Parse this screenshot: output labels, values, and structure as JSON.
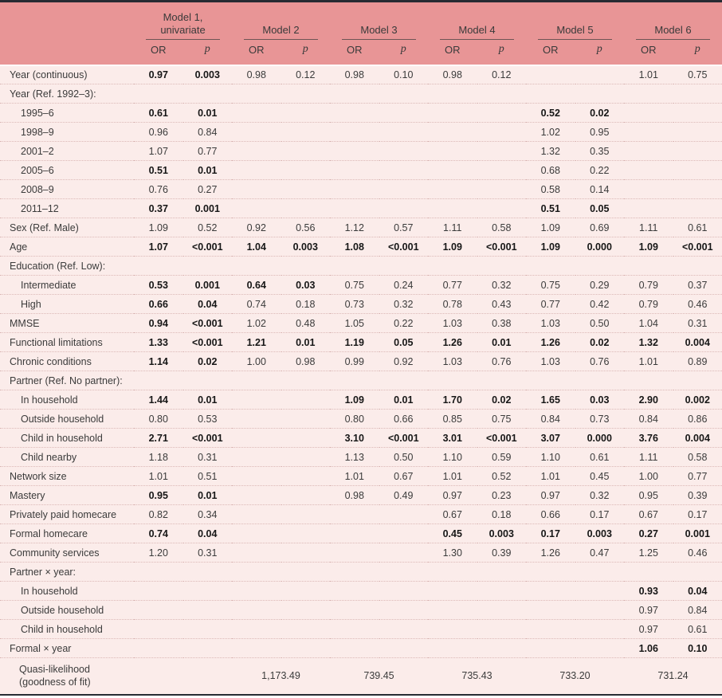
{
  "colors": {
    "header_bg": "#e89596",
    "body_bg": "#fbecea",
    "separator": "#dcb9b7",
    "frame": "#272b33",
    "text": "#3b3b3b",
    "bold_text": "#161616",
    "model_rule": "#6e5555"
  },
  "header": {
    "models": [
      {
        "line1": "Model 1,",
        "line2": "univariate"
      },
      {
        "line1": "Model 2",
        "line2": ""
      },
      {
        "line1": "Model 3",
        "line2": ""
      },
      {
        "line1": "Model 4",
        "line2": ""
      },
      {
        "line1": "Model 5",
        "line2": ""
      },
      {
        "line1": "Model 6",
        "line2": ""
      }
    ],
    "col_or": "OR",
    "col_p": "p"
  },
  "rows": [
    {
      "label": "Year (continuous)",
      "indent": 0,
      "cells": [
        "0.97",
        "0.003",
        "0.98",
        "0.12",
        "0.98",
        "0.10",
        "0.98",
        "0.12",
        "",
        "",
        "1.01",
        "0.75"
      ],
      "bold": [
        0,
        1
      ]
    },
    {
      "label": "Year (Ref. 1992–3):",
      "indent": 0,
      "cells": [
        "",
        "",
        "",
        "",
        "",
        "",
        "",
        "",
        "",
        "",
        "",
        ""
      ],
      "bold": []
    },
    {
      "label": "1995–6",
      "indent": 1,
      "cells": [
        "0.61",
        "0.01",
        "",
        "",
        "",
        "",
        "",
        "",
        "0.52",
        "0.02",
        "",
        ""
      ],
      "bold": [
        0,
        1,
        8,
        9
      ]
    },
    {
      "label": "1998–9",
      "indent": 1,
      "cells": [
        "0.96",
        "0.84",
        "",
        "",
        "",
        "",
        "",
        "",
        "1.02",
        "0.95",
        "",
        ""
      ],
      "bold": []
    },
    {
      "label": "2001–2",
      "indent": 1,
      "cells": [
        "1.07",
        "0.77",
        "",
        "",
        "",
        "",
        "",
        "",
        "1.32",
        "0.35",
        "",
        ""
      ],
      "bold": []
    },
    {
      "label": "2005–6",
      "indent": 1,
      "cells": [
        "0.51",
        "0.01",
        "",
        "",
        "",
        "",
        "",
        "",
        "0.68",
        "0.22",
        "",
        ""
      ],
      "bold": [
        0,
        1
      ]
    },
    {
      "label": "2008–9",
      "indent": 1,
      "cells": [
        "0.76",
        "0.27",
        "",
        "",
        "",
        "",
        "",
        "",
        "0.58",
        "0.14",
        "",
        ""
      ],
      "bold": []
    },
    {
      "label": "2011–12",
      "indent": 1,
      "cells": [
        "0.37",
        "0.001",
        "",
        "",
        "",
        "",
        "",
        "",
        "0.51",
        "0.05",
        "",
        ""
      ],
      "bold": [
        0,
        1,
        8,
        9
      ]
    },
    {
      "label": "Sex (Ref. Male)",
      "indent": 0,
      "cells": [
        "1.09",
        "0.52",
        "0.92",
        "0.56",
        "1.12",
        "0.57",
        "1.11",
        "0.58",
        "1.09",
        "0.69",
        "1.11",
        "0.61"
      ],
      "bold": []
    },
    {
      "label": "Age",
      "indent": 0,
      "cells": [
        "1.07",
        "<0.001",
        "1.04",
        "0.003",
        "1.08",
        "<0.001",
        "1.09",
        "<0.001",
        "1.09",
        "0.000",
        "1.09",
        "<0.001"
      ],
      "bold": [
        0,
        1,
        2,
        3,
        4,
        5,
        6,
        7,
        8,
        9,
        10,
        11
      ]
    },
    {
      "label": "Education (Ref. Low):",
      "indent": 0,
      "cells": [
        "",
        "",
        "",
        "",
        "",
        "",
        "",
        "",
        "",
        "",
        "",
        ""
      ],
      "bold": []
    },
    {
      "label": "Intermediate",
      "indent": 1,
      "cells": [
        "0.53",
        "0.001",
        "0.64",
        "0.03",
        "0.75",
        "0.24",
        "0.77",
        "0.32",
        "0.75",
        "0.29",
        "0.79",
        "0.37"
      ],
      "bold": [
        0,
        1,
        2,
        3
      ]
    },
    {
      "label": "High",
      "indent": 1,
      "cells": [
        "0.66",
        "0.04",
        "0.74",
        "0.18",
        "0.73",
        "0.32",
        "0.78",
        "0.43",
        "0.77",
        "0.42",
        "0.79",
        "0.46"
      ],
      "bold": [
        0,
        1
      ]
    },
    {
      "label": "MMSE",
      "indent": 0,
      "cells": [
        "0.94",
        "<0.001",
        "1.02",
        "0.48",
        "1.05",
        "0.22",
        "1.03",
        "0.38",
        "1.03",
        "0.50",
        "1.04",
        "0.31"
      ],
      "bold": [
        0,
        1
      ]
    },
    {
      "label": "Functional limitations",
      "indent": 0,
      "cells": [
        "1.33",
        "<0.001",
        "1.21",
        "0.01",
        "1.19",
        "0.05",
        "1.26",
        "0.01",
        "1.26",
        "0.02",
        "1.32",
        "0.004"
      ],
      "bold": [
        0,
        1,
        2,
        3,
        4,
        5,
        6,
        7,
        8,
        9,
        10,
        11
      ]
    },
    {
      "label": "Chronic conditions",
      "indent": 0,
      "cells": [
        "1.14",
        "0.02",
        "1.00",
        "0.98",
        "0.99",
        "0.92",
        "1.03",
        "0.76",
        "1.03",
        "0.76",
        "1.01",
        "0.89"
      ],
      "bold": [
        0,
        1
      ]
    },
    {
      "label": "Partner (Ref. No partner):",
      "indent": 0,
      "cells": [
        "",
        "",
        "",
        "",
        "",
        "",
        "",
        "",
        "",
        "",
        "",
        ""
      ],
      "bold": []
    },
    {
      "label": "In household",
      "indent": 1,
      "cells": [
        "1.44",
        "0.01",
        "",
        "",
        "1.09",
        "0.01",
        "1.70",
        "0.02",
        "1.65",
        "0.03",
        "2.90",
        "0.002"
      ],
      "bold": [
        0,
        1,
        4,
        5,
        6,
        7,
        8,
        9,
        10,
        11
      ]
    },
    {
      "label": "Outside household",
      "indent": 1,
      "cells": [
        "0.80",
        "0.53",
        "",
        "",
        "0.80",
        "0.66",
        "0.85",
        "0.75",
        "0.84",
        "0.73",
        "0.84",
        "0.86"
      ],
      "bold": []
    },
    {
      "label": "Child in household",
      "indent": 1,
      "cells": [
        "2.71",
        "<0.001",
        "",
        "",
        "3.10",
        "<0.001",
        "3.01",
        "<0.001",
        "3.07",
        "0.000",
        "3.76",
        "0.004"
      ],
      "bold": [
        0,
        1,
        4,
        5,
        6,
        7,
        8,
        9,
        10,
        11
      ]
    },
    {
      "label": "Child nearby",
      "indent": 1,
      "cells": [
        "1.18",
        "0.31",
        "",
        "",
        "1.13",
        "0.50",
        "1.10",
        "0.59",
        "1.10",
        "0.61",
        "1.11",
        "0.58"
      ],
      "bold": []
    },
    {
      "label": "Network size",
      "indent": 0,
      "cells": [
        "1.01",
        "0.51",
        "",
        "",
        "1.01",
        "0.67",
        "1.01",
        "0.52",
        "1.01",
        "0.45",
        "1.00",
        "0.77"
      ],
      "bold": []
    },
    {
      "label": "Mastery",
      "indent": 0,
      "cells": [
        "0.95",
        "0.01",
        "",
        "",
        "0.98",
        "0.49",
        "0.97",
        "0.23",
        "0.97",
        "0.32",
        "0.95",
        "0.39"
      ],
      "bold": [
        0,
        1
      ]
    },
    {
      "label": "Privately paid homecare",
      "indent": 0,
      "cells": [
        "0.82",
        "0.34",
        "",
        "",
        "",
        "",
        "0.67",
        "0.18",
        "0.66",
        "0.17",
        "0.67",
        "0.17"
      ],
      "bold": []
    },
    {
      "label": "Formal homecare",
      "indent": 0,
      "cells": [
        "0.74",
        "0.04",
        "",
        "",
        "",
        "",
        "0.45",
        "0.003",
        "0.17",
        "0.003",
        "0.27",
        "0.001"
      ],
      "bold": [
        0,
        1,
        6,
        7,
        8,
        9,
        10,
        11
      ]
    },
    {
      "label": "Community services",
      "indent": 0,
      "cells": [
        "1.20",
        "0.31",
        "",
        "",
        "",
        "",
        "1.30",
        "0.39",
        "1.26",
        "0.47",
        "1.25",
        "0.46"
      ],
      "bold": []
    },
    {
      "label": "Partner × year:",
      "indent": 0,
      "cells": [
        "",
        "",
        "",
        "",
        "",
        "",
        "",
        "",
        "",
        "",
        "",
        ""
      ],
      "bold": []
    },
    {
      "label": "In household",
      "indent": 1,
      "cells": [
        "",
        "",
        "",
        "",
        "",
        "",
        "",
        "",
        "",
        "",
        "0.93",
        "0.04"
      ],
      "bold": [
        10,
        11
      ]
    },
    {
      "label": "Outside household",
      "indent": 1,
      "cells": [
        "",
        "",
        "",
        "",
        "",
        "",
        "",
        "",
        "",
        "",
        "0.97",
        "0.84"
      ],
      "bold": []
    },
    {
      "label": "Child in household",
      "indent": 1,
      "cells": [
        "",
        "",
        "",
        "",
        "",
        "",
        "",
        "",
        "",
        "",
        "0.97",
        "0.61"
      ],
      "bold": []
    },
    {
      "label": "Formal × year",
      "indent": 0,
      "cells": [
        "",
        "",
        "",
        "",
        "",
        "",
        "",
        "",
        "",
        "",
        "1.06",
        "0.10"
      ],
      "bold": [
        10,
        11
      ]
    }
  ],
  "footer": {
    "label_line1": "Quasi-likelihood",
    "label_line2": "(goodness of fit)",
    "values": [
      "",
      "1,173.49",
      "739.45",
      "735.43",
      "733.20",
      "731.24"
    ]
  }
}
